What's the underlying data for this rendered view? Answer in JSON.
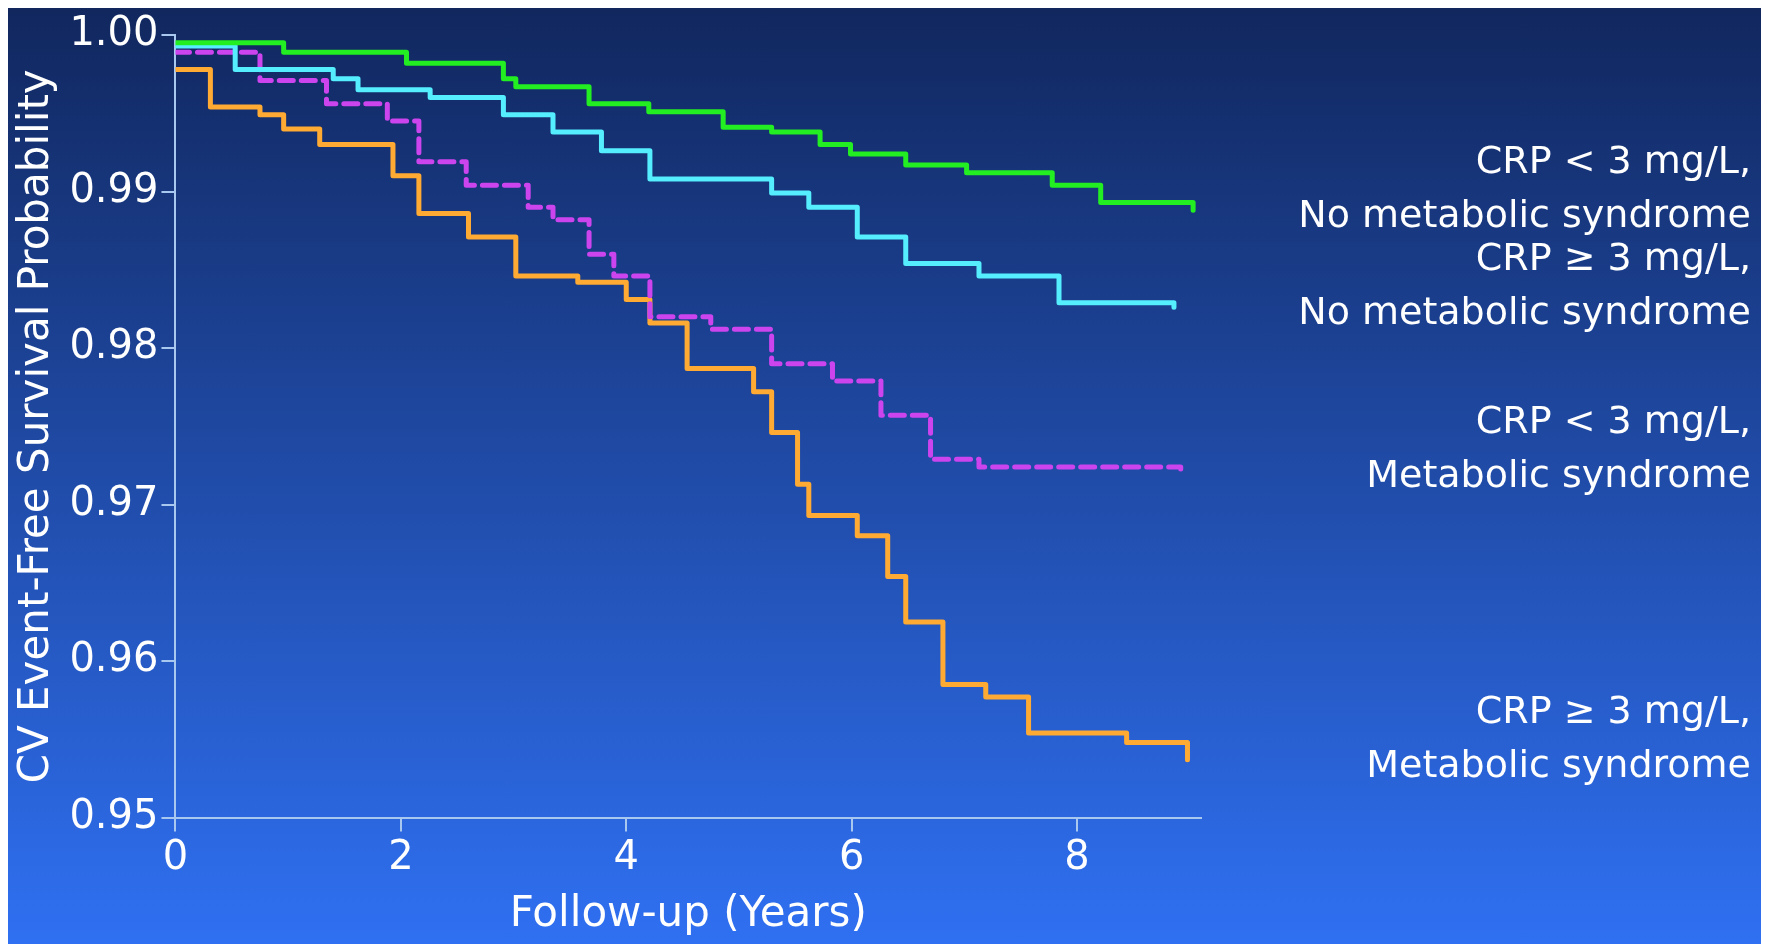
{
  "chart_data": {
    "type": "step",
    "xlabel": "Follow-up (Years)",
    "ylabel": "CV Event-Free Survival Probability",
    "xlim": [
      0,
      9.1
    ],
    "xticks": [
      0,
      2,
      4,
      6,
      8
    ],
    "ylim": [
      0.95,
      1.0
    ],
    "yticks": [
      {
        "value": 0.95,
        "label": "0.95"
      },
      {
        "value": 0.96,
        "label": "0.96"
      },
      {
        "value": 0.97,
        "label": "0.97"
      },
      {
        "value": 0.98,
        "label": "0.98"
      },
      {
        "value": 0.99,
        "label": "0.99"
      },
      {
        "value": 1.0,
        "label": "1.00"
      }
    ],
    "grid": false,
    "legend": false,
    "line_style": "solid",
    "series": [
      {
        "name": "CRP < 3 mg/L, No metabolic syndrome",
        "color": "#22ee22",
        "x": [
          0,
          0.96,
          2.05,
          2.91,
          3.02,
          3.67,
          4.2,
          4.86,
          5.29,
          5.72,
          5.99,
          6.48,
          7.02,
          7.78,
          8.21,
          9.03
        ],
        "values": [
          0.9995,
          0.9989,
          0.9982,
          0.9972,
          0.9967,
          0.9956,
          0.9951,
          0.9941,
          0.9938,
          0.993,
          0.9924,
          0.9917,
          0.9912,
          0.9904,
          0.9893,
          0.9888
        ]
      },
      {
        "name": "CRP ≥ 3 mg/L, No metabolic syndrome",
        "color": "#55eeff",
        "x": [
          0,
          0.53,
          1.4,
          1.62,
          2.26,
          2.91,
          3.35,
          3.78,
          4.21,
          5.29,
          5.62,
          6.05,
          6.48,
          7.13,
          7.84,
          8.86
        ],
        "values": [
          0.9993,
          0.9978,
          0.9972,
          0.9965,
          0.996,
          0.9949,
          0.9938,
          0.9926,
          0.9908,
          0.9899,
          0.989,
          0.9871,
          0.9854,
          0.9846,
          0.9829,
          0.9826
        ]
      },
      {
        "name": "CRP < 3 mg/L, Metabolic syndrome",
        "color": "#cc44ee",
        "line_style": "dashed",
        "x": [
          0,
          0.75,
          1.34,
          1.88,
          2.16,
          2.58,
          3.13,
          3.35,
          3.67,
          3.89,
          4.21,
          4.75,
          5.29,
          5.83,
          6.26,
          6.7,
          7.13,
          8.92
        ],
        "values": [
          0.9989,
          0.9971,
          0.9956,
          0.9945,
          0.9919,
          0.9904,
          0.989,
          0.9882,
          0.986,
          0.9846,
          0.982,
          0.9812,
          0.979,
          0.9779,
          0.9757,
          0.9729,
          0.9724,
          0.9722
        ]
      },
      {
        "name": "CRP ≥ 3 mg/L, Metabolic syndrome",
        "color": "#ffaa33",
        "x": [
          0,
          0.31,
          0.75,
          0.96,
          1.28,
          1.93,
          2.16,
          2.6,
          3.02,
          3.57,
          4.0,
          4.21,
          4.54,
          5.13,
          5.29,
          5.52,
          5.62,
          6.05,
          6.32,
          6.48,
          6.81,
          7.19,
          7.57,
          8.44,
          8.98
        ],
        "values": [
          0.9978,
          0.9954,
          0.9949,
          0.994,
          0.993,
          0.991,
          0.9886,
          0.9871,
          0.9846,
          0.9842,
          0.9831,
          0.9816,
          0.9787,
          0.9772,
          0.9746,
          0.9713,
          0.9693,
          0.968,
          0.9654,
          0.9625,
          0.9585,
          0.9577,
          0.9554,
          0.9548,
          0.9537
        ]
      }
    ]
  }
}
